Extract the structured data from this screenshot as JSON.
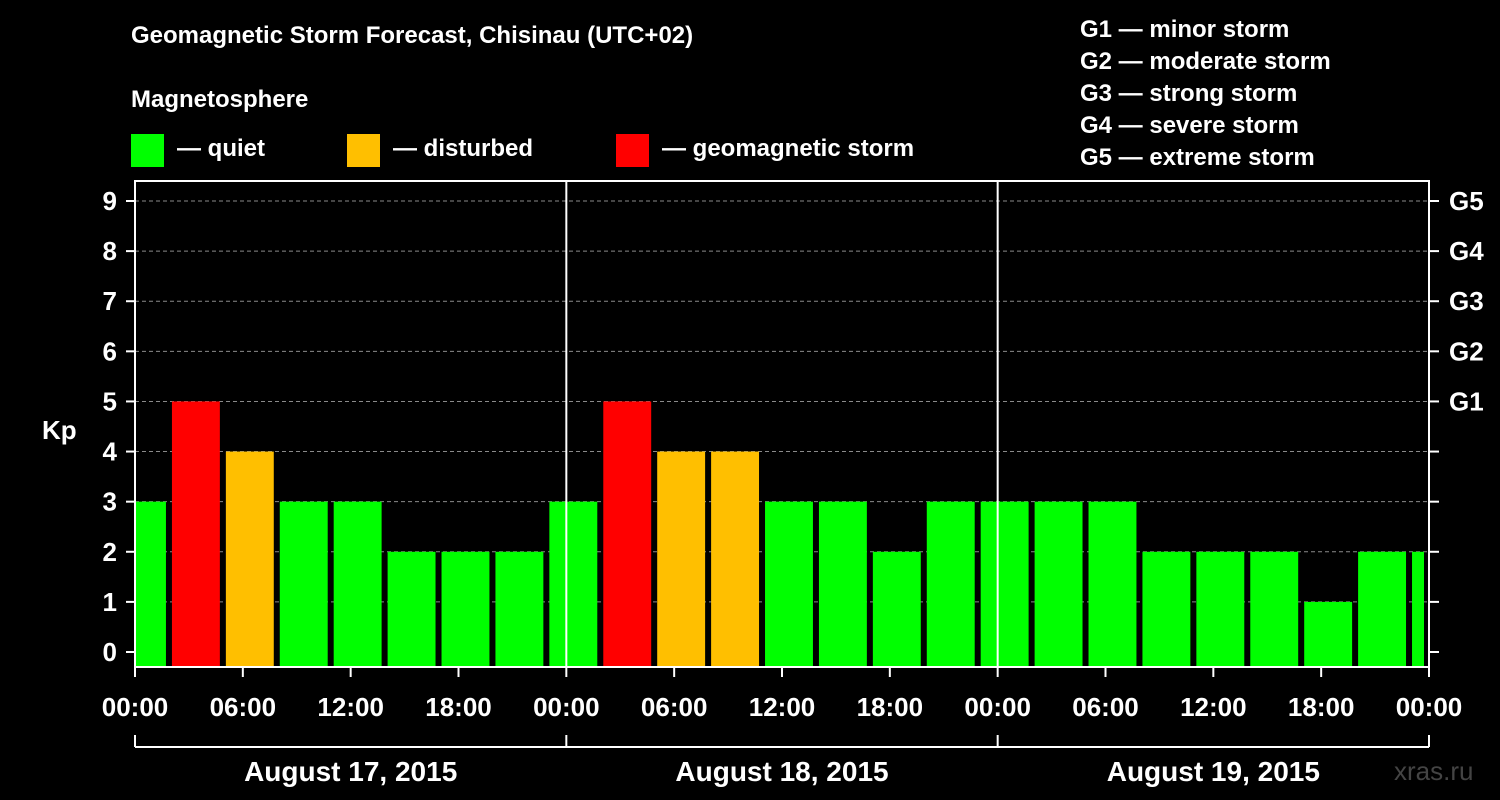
{
  "header": {
    "title": "Geomagnetic Storm Forecast, Chisinau (UTC+02)",
    "magnetosphere_label": "Magnetosphere"
  },
  "legend": {
    "quiet": {
      "label": "— quiet",
      "color": "#00ff00"
    },
    "disturbed": {
      "label": "— disturbed",
      "color": "#ffbf00"
    },
    "storm": {
      "label": "— geomagnetic storm",
      "color": "#ff0000"
    }
  },
  "storm_scale": [
    "G1 — minor storm",
    "G2 — moderate storm",
    "G3 — strong storm",
    "G4 — severe storm",
    "G5 — extreme storm"
  ],
  "source": "xras.ru",
  "chart_data": {
    "type": "bar",
    "title": "Geomagnetic Storm Forecast, Chisinau (UTC+02)",
    "ylabel": "Kp",
    "ylim": [
      0,
      9
    ],
    "yticks": [
      "0",
      "1",
      "2",
      "3",
      "4",
      "5",
      "6",
      "7",
      "8",
      "9"
    ],
    "right_axis_labels": [
      {
        "kp": 5,
        "label": "G1"
      },
      {
        "kp": 6,
        "label": "G2"
      },
      {
        "kp": 7,
        "label": "G3"
      },
      {
        "kp": 8,
        "label": "G4"
      },
      {
        "kp": 9,
        "label": "G5"
      }
    ],
    "xticks": [
      "00:00",
      "06:00",
      "12:00",
      "18:00",
      "00:00",
      "06:00",
      "12:00",
      "18:00",
      "00:00",
      "06:00",
      "12:00",
      "18:00",
      "00:00"
    ],
    "days": [
      "August 17, 2015",
      "August 18, 2015",
      "August 19, 2015"
    ],
    "interval_hours": 3,
    "start_hour_offset": -1,
    "values": [
      3,
      5,
      4,
      3,
      3,
      2,
      2,
      2,
      3,
      5,
      4,
      4,
      3,
      3,
      2,
      3,
      3,
      3,
      3,
      2,
      2,
      2,
      1,
      2,
      2
    ],
    "categories": [
      "quiet",
      "storm",
      "disturbed",
      "quiet",
      "quiet",
      "quiet",
      "quiet",
      "quiet",
      "quiet",
      "storm",
      "disturbed",
      "disturbed",
      "quiet",
      "quiet",
      "quiet",
      "quiet",
      "quiet",
      "quiet",
      "quiet",
      "quiet",
      "quiet",
      "quiet",
      "quiet",
      "quiet",
      "quiet"
    ],
    "colors": {
      "quiet": "#00ff00",
      "disturbed": "#ffbf00",
      "storm": "#ff0000"
    },
    "grid": true
  }
}
